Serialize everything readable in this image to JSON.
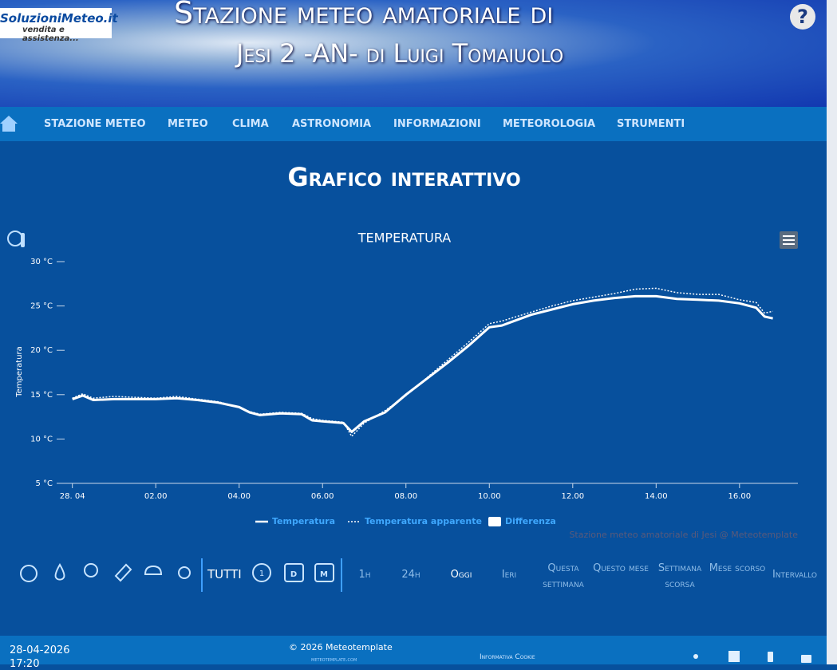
{
  "header": {
    "logo_title": "SoluzioniMeteo.it",
    "logo_subtitle": "vendita e assistenza...",
    "title_line1": "Stazione meteo amatoriale di",
    "title_line2": "Jesi 2 -AN- di Luigi Tomaiuolo",
    "help": "?"
  },
  "nav": [
    "STAZIONE METEO",
    "METEO",
    "CLIMA",
    "ASTRONOMIA",
    "INFORMAZIONI",
    "METEOROLOGIA",
    "STRUMENTI"
  ],
  "page_title": "Grafico interattivo",
  "chart_data": {
    "type": "line",
    "title": "TEMPERATURA",
    "y_label": "Temperatura",
    "credits": "Stazione meteo amatoriale di Jesi @ Meteotemplate",
    "x": [
      0,
      0.25,
      0.5,
      1,
      1.5,
      2,
      2.5,
      3,
      3.5,
      4,
      4.25,
      4.5,
      5,
      5.5,
      5.75,
      6,
      6.5,
      6.7,
      7,
      7.5,
      8,
      8.5,
      9,
      9.5,
      10,
      10.3,
      11,
      11.5,
      12,
      12.5,
      13,
      13.5,
      14,
      14.5,
      15,
      15.5,
      16,
      16.4,
      16.6,
      16.8
    ],
    "series": [
      {
        "name": "Temperatura",
        "color": "#ffffff",
        "style": "solid",
        "values": [
          14.5,
          14.9,
          14.4,
          14.5,
          14.5,
          14.5,
          14.6,
          14.4,
          14.1,
          13.6,
          13.0,
          12.7,
          12.9,
          12.8,
          12.1,
          12.0,
          11.8,
          10.8,
          12.0,
          13.0,
          15.0,
          16.8,
          18.6,
          20.5,
          22.6,
          22.8,
          24.0,
          24.6,
          25.2,
          25.6,
          25.9,
          26.1,
          26.1,
          25.8,
          25.7,
          25.6,
          25.3,
          24.8,
          23.8,
          23.6
        ]
      },
      {
        "name": "Temperatura apparente",
        "color": "#ffffff",
        "style": "dotted",
        "values": [
          14.6,
          15.1,
          14.6,
          14.8,
          14.7,
          14.6,
          14.8,
          14.5,
          14.2,
          13.6,
          13.1,
          12.8,
          13.0,
          12.9,
          12.3,
          12.1,
          11.9,
          10.3,
          11.8,
          13.2,
          14.9,
          16.9,
          18.9,
          20.9,
          23.0,
          23.3,
          24.3,
          25.0,
          25.6,
          26.0,
          26.4,
          26.9,
          27.0,
          26.5,
          26.3,
          26.3,
          25.7,
          25.4,
          24.2,
          24.4
        ]
      },
      {
        "name": "Differenza",
        "color": "#ffffff",
        "style": "area"
      }
    ],
    "xlim": [
      -0.3,
      17.4
    ],
    "xticks": [
      {
        "value": 0,
        "label": "28. 04"
      },
      {
        "value": 2,
        "label": "02.00"
      },
      {
        "value": 4,
        "label": "04.00"
      },
      {
        "value": 6,
        "label": "06.00"
      },
      {
        "value": 8,
        "label": "08.00"
      },
      {
        "value": 10,
        "label": "10.00"
      },
      {
        "value": 12,
        "label": "12.00"
      },
      {
        "value": 14,
        "label": "14.00"
      },
      {
        "value": 16,
        "label": "16.00"
      }
    ],
    "ylim": [
      5,
      30
    ],
    "yticks": [
      {
        "value": 5,
        "label": "5 °C"
      },
      {
        "value": 10,
        "label": "10 °C"
      },
      {
        "value": 15,
        "label": "15 °C"
      },
      {
        "value": 20,
        "label": "20 °C"
      },
      {
        "value": 25,
        "label": "25 °C"
      },
      {
        "value": 30,
        "label": "30 °C"
      }
    ],
    "grid": false
  },
  "controls": {
    "all": "TUTTI",
    "clock_label": "1",
    "calendar_labels": [
      "D",
      "M"
    ],
    "ranges": [
      "1h",
      "24h",
      "Oggi",
      "Ieri",
      "Questa settimana",
      "Questo mese",
      "Settimana scorsa",
      "Mese scorso",
      "Intervallo"
    ]
  },
  "footer": {
    "date": "28-04-2026",
    "time": "17:20",
    "copyright": "© 2026 Meteotemplate",
    "site": "meteotemplate.com",
    "cookie": "Informativa Cookie"
  }
}
